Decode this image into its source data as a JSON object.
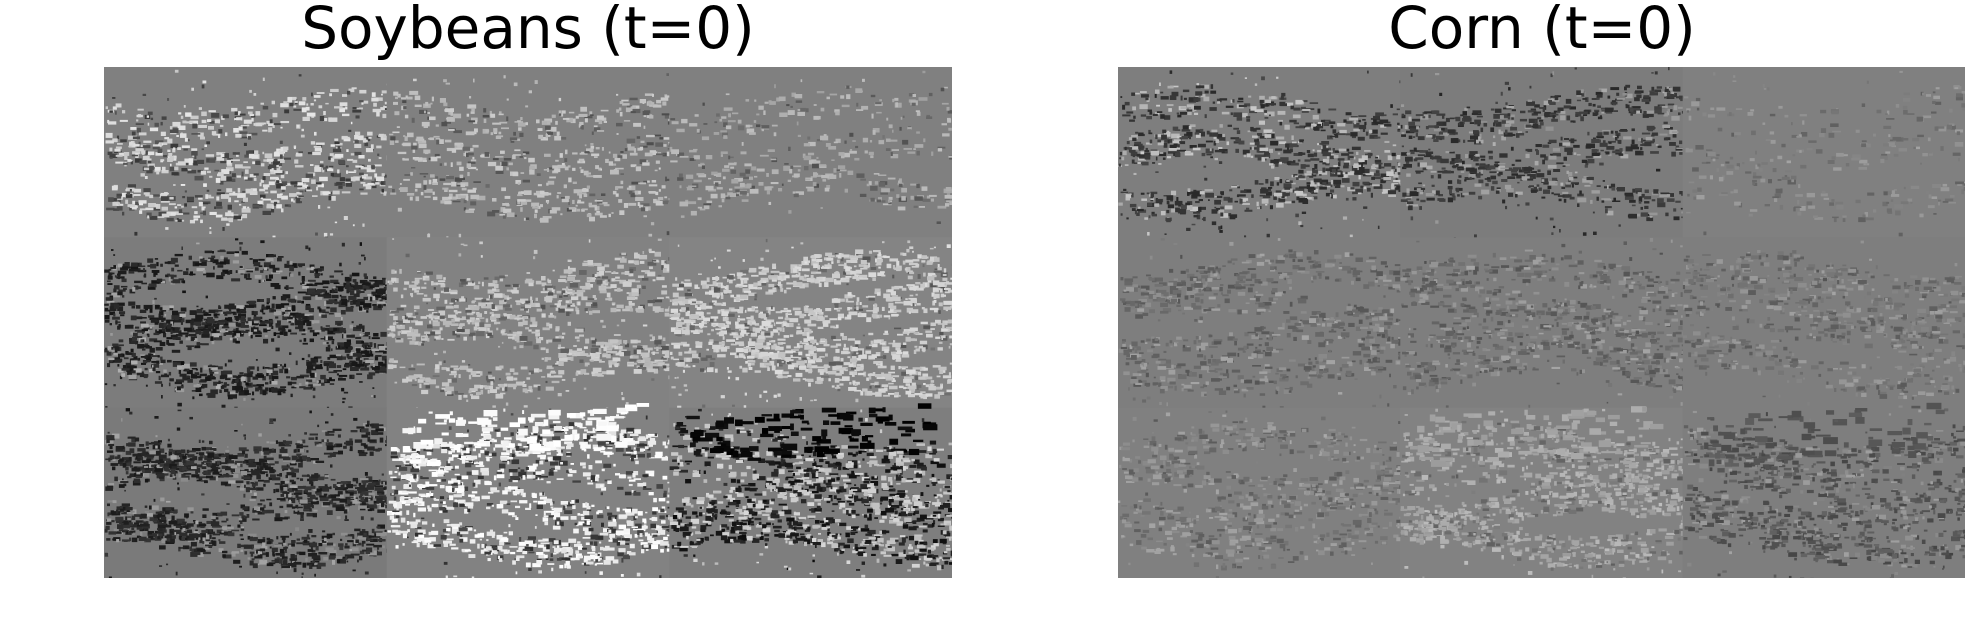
{
  "panels": {
    "left": {
      "title": "Soybeans (t=0)"
    },
    "right": {
      "title": "Corn (t=0)"
    }
  },
  "colors": {
    "background": "#ffffff",
    "base_gray": "#808080",
    "dark_speckle": "#2a2a2a",
    "light_speckle": "#c8c8c8",
    "white": "#ffffff",
    "black": "#000000"
  }
}
